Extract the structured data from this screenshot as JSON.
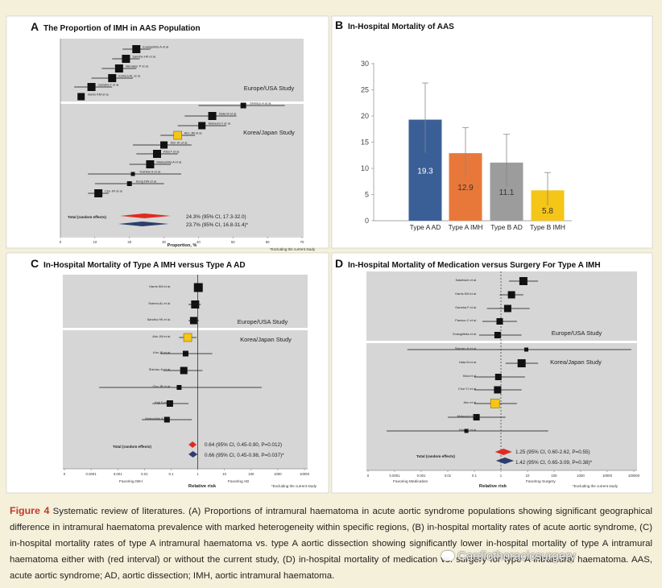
{
  "panel_a": {
    "letter": "A",
    "title": "The Proportion of IMH in AAS Population",
    "xlabel": "Proportion, %",
    "xticks": [
      "0",
      "10",
      "20",
      "30",
      "40",
      "50",
      "60",
      "70"
    ],
    "region_top": "Europe/USA Study",
    "region_bottom": "Korea/Japan Study",
    "total_label": "Total (random effects)",
    "summary_1": "24.3% (95% CI, 17.3-32.0)",
    "summary_2": "23.7% (95% CI, 16.8-31.4)*",
    "footnote": "*Excluding the current study",
    "chart_data": {
      "type": "forest",
      "x_range": [
        0,
        70
      ],
      "studies": [
        {
          "name": "Evangelista A et al.",
          "group": "Europe/USA",
          "estimate": 22,
          "ci": [
            18,
            26
          ]
        },
        {
          "name": "Sandhu HK et al.",
          "group": "Europe/USA",
          "estimate": 19,
          "ci": [
            15,
            23
          ]
        },
        {
          "name": "Nienaber P et al.",
          "group": "Europe/USA",
          "estimate": 17,
          "ci": [
            12,
            22
          ]
        },
        {
          "name": "Estrera AL et al.",
          "group": "Europe/USA",
          "estimate": 15,
          "ci": [
            9,
            21
          ]
        },
        {
          "name": "Ganaha F et al.",
          "group": "Europe/USA",
          "estimate": 9,
          "ci": [
            4,
            15
          ]
        },
        {
          "name": "Harris KM et al.",
          "group": "Europe/USA",
          "estimate": 6,
          "ci": [
            5,
            7
          ]
        },
        {
          "name": "Shimizu H et al.",
          "group": "Korea/Japan",
          "estimate": 53,
          "ci": [
            40,
            65
          ]
        },
        {
          "name": "Ihata M et al.",
          "group": "Korea/Japan",
          "estimate": 44,
          "ci": [
            36,
            51
          ]
        },
        {
          "name": "Motoumi Y et al.",
          "group": "Korea/Japan",
          "estimate": 41,
          "ci": [
            34,
            48
          ]
        },
        {
          "name": "Ahn JM et al.",
          "group": "Korea/Japan",
          "estimate": 34,
          "ci": [
            29,
            39
          ]
        },
        {
          "name": "Kim JK et al.",
          "group": "Korea/Japan",
          "estimate": 30,
          "ci": [
            21,
            38
          ]
        },
        {
          "name": "Kitai T et al.",
          "group": "Korea/Japan",
          "estimate": 28,
          "ci": [
            22,
            34
          ]
        },
        {
          "name": "Matsushita A et al.",
          "group": "Korea/Japan",
          "estimate": 26,
          "ci": [
            20,
            32
          ]
        },
        {
          "name": "Yoshida S et al.",
          "group": "Korea/Japan",
          "estimate": 21,
          "ci": [
            8,
            35
          ]
        },
        {
          "name": "Song DW et al.",
          "group": "Korea/Japan",
          "estimate": 20,
          "ci": [
            10,
            30
          ]
        },
        {
          "name": "Cho JR et al.",
          "group": "Korea/Japan",
          "estimate": 11,
          "ci": [
            8,
            14
          ]
        }
      ],
      "totals": [
        {
          "label": "24.3% (95% CI, 17.3-32.0)",
          "estimate": 24.3,
          "ci": [
            17.3,
            32.0
          ]
        },
        {
          "label": "23.7% (95% CI, 16.8-31.4)*",
          "estimate": 23.7,
          "ci": [
            16.8,
            31.4
          ]
        }
      ]
    }
  },
  "panel_b": {
    "letter": "B",
    "title": "In-Hospital Mortality of AAS",
    "chart_data": {
      "type": "bar",
      "categories": [
        "Type A AD",
        "Type A IMH",
        "Type B AD",
        "Type B IMH"
      ],
      "values": [
        19.3,
        12.9,
        11.1,
        5.8
      ],
      "errors_upper": [
        26.3,
        17.8,
        16.5,
        9.2
      ],
      "errors_lower": [
        13,
        8.4,
        6.5,
        2.9
      ],
      "value_labels": [
        "19.3",
        "12.9",
        "11.1",
        "5.8"
      ],
      "colors": [
        "#3a5f96",
        "#e8783a",
        "#9c9c9c",
        "#f5c518"
      ],
      "yticks": [
        "0",
        "5",
        "10",
        "15",
        "20",
        "25",
        "30"
      ],
      "ylim": [
        0,
        30
      ],
      "title": "In-Hospital Mortality of AAS"
    }
  },
  "panel_c": {
    "letter": "C",
    "title": "In-Hospital Mortality of Type A IMH versus Type A AD",
    "xlabel": "Relative risk",
    "favor_left": "Favoring IMH",
    "favor_right": "Favoring AD",
    "xticks": [
      "0",
      "0.0001",
      "0.001",
      "0.01",
      "0.1",
      "1",
      "10",
      "100",
      "1000",
      "10000"
    ],
    "region_top": "Europe/USA Study",
    "region_bottom": "Korea/Japan Study",
    "total_label": "Total (random effects)",
    "summary_1": "0.64 (95% CI, 0.45-0.90, P=0.012)",
    "summary_2": "0.66 (95% CI, 0.45-0.98, P=0.037)*",
    "footnote": "*Excluding the current study",
    "chart_data": {
      "type": "forest",
      "scale": "log",
      "x_range": [
        1e-05,
        10000
      ],
      "studies": [
        {
          "name": "Harris KM et al.",
          "group": "Europe/USA",
          "estimate": 1.05,
          "ci": [
            0.8,
            1.3
          ]
        },
        {
          "name": "Estrera AL et al.",
          "group": "Europe/USA",
          "estimate": 0.8,
          "ci": [
            0.45,
            1.3
          ]
        },
        {
          "name": "Sandhu HK et al.",
          "group": "Europe/USA",
          "estimate": 0.7,
          "ci": [
            0.45,
            1.1
          ]
        },
        {
          "name": "Ahn JM et al.",
          "group": "Korea/Japan",
          "estimate": 0.42,
          "ci": [
            0.2,
            0.9
          ]
        },
        {
          "name": "Kim JK et al.",
          "group": "Korea/Japan",
          "estimate": 0.35,
          "ci": [
            0.04,
            3.5
          ]
        },
        {
          "name": "Shimizu H et al.",
          "group": "Korea/Japan",
          "estimate": 0.3,
          "ci": [
            0.05,
            1.5
          ]
        },
        {
          "name": "Cho JR et al.",
          "group": "Korea/Japan",
          "estimate": 0.2,
          "ci": [
            0.0002,
            250
          ]
        },
        {
          "name": "Kaji S et al.",
          "group": "Korea/Japan",
          "estimate": 0.09,
          "ci": [
            0.02,
            0.45
          ]
        },
        {
          "name": "Matsushita A et al.",
          "group": "Korea/Japan",
          "estimate": 0.07,
          "ci": [
            0.008,
            0.6
          ]
        }
      ],
      "totals": [
        {
          "label": "0.64 (95% CI, 0.45-0.90, P=0.012)",
          "estimate": 0.64,
          "ci": [
            0.45,
            0.9
          ]
        },
        {
          "label": "0.66 (95% CI, 0.45-0.98, P=0.037)*",
          "estimate": 0.66,
          "ci": [
            0.45,
            0.98
          ]
        }
      ]
    }
  },
  "panel_d": {
    "letter": "D",
    "title": "In-Hospital Mortality of Medication versus Surgery For Type A IMH",
    "xlabel": "Relative risk",
    "favor_left": "Favoring Medication",
    "favor_right": "Favoring Surgery",
    "xticks": [
      "0",
      "0.0001",
      "0.001",
      "0.01",
      "0.1",
      "1",
      "10",
      "100",
      "1000",
      "10000",
      "100000"
    ],
    "region_top": "Europe/USA Study",
    "region_bottom": "Korea/Japan Study",
    "total_label": "Total (random effects)",
    "summary_1": "1.25 (95% CI, 0.60-2.62, P=0.55)",
    "summary_2": "1.42 (95% CI, 0.65-3.09, P=0.38)*",
    "footnote": "*Excluding the current study",
    "chart_data": {
      "type": "forest",
      "scale": "log",
      "x_range": [
        1e-05,
        100000
      ],
      "studies": [
        {
          "name": "Kaistrisch et al.",
          "group": "Europe/USA",
          "estimate": 7,
          "ci": [
            2,
            25
          ]
        },
        {
          "name": "Harris KM et al.",
          "group": "Europe/USA",
          "estimate": 2.5,
          "ci": [
            0.9,
            7
          ]
        },
        {
          "name": "Ganaha F et al.",
          "group": "Europe/USA",
          "estimate": 1.8,
          "ci": [
            0.3,
            12
          ]
        },
        {
          "name": "Pannuu C et al.",
          "group": "Europe/USA",
          "estimate": 0.9,
          "ci": [
            0.2,
            4
          ]
        },
        {
          "name": "Evangelista et al.",
          "group": "Europe/USA",
          "estimate": 0.75,
          "ci": [
            0.15,
            6
          ]
        },
        {
          "name": "Shimizu H et al.",
          "group": "Korea/Japan",
          "estimate": 9,
          "ci": [
            0.0003,
            80000
          ]
        },
        {
          "name": "Hata M et al.",
          "group": "Korea/Japan",
          "estimate": 6,
          "ci": [
            1.5,
            25
          ]
        },
        {
          "name": "Kitai et al.",
          "group": "Korea/Japan",
          "estimate": 0.8,
          "ci": [
            0.1,
            8
          ]
        },
        {
          "name": "Choi YJ et al.",
          "group": "Korea/Japan",
          "estimate": 0.75,
          "ci": [
            0.1,
            6
          ]
        },
        {
          "name": "Ahn et al.",
          "group": "Korea/Japan",
          "estimate": 0.6,
          "ci": [
            0.1,
            4
          ]
        },
        {
          "name": "Motoumi et al.",
          "group": "Korea/Japan",
          "estimate": 0.12,
          "ci": [
            0.01,
            1.5
          ]
        },
        {
          "name": "Kim JK et al.",
          "group": "Korea/Japan",
          "estimate": 0.05,
          "ci": [
            5e-05,
            60
          ]
        }
      ],
      "totals": [
        {
          "label": "1.25 (95% CI, 0.60-2.62, P=0.55)",
          "estimate": 1.25,
          "ci": [
            0.6,
            2.62
          ]
        },
        {
          "label": "1.42 (95% CI, 0.65-3.09, P=0.38)*",
          "estimate": 1.42,
          "ci": [
            0.65,
            3.09
          ]
        }
      ]
    }
  },
  "caption": {
    "label": "Figure 4",
    "text": "Systematic review of literatures. (A) Proportions of intramural haematoma in acute aortic syndrome populations showing significant geographical difference in intramural haematoma prevalence with marked heterogeneity within specific regions, (B) in-hospital mortality rates of acute aortic syndrome, (C) in-hospital mortality rates of type A intramural haematoma vs. type A aortic dissection showing significantly lower in-hospital mortality of type A intramural haematoma either with (red interval) or without the current study, (D) in-hospital mortality of medication vs. surgery for type A intramural haematoma. AAS, acute aortic syndrome; AD, aortic dissection; IMH, aortic intramural haematoma."
  },
  "watermark": "Cardiothoracicsurgery",
  "colors": {
    "bg": "#f5f0da",
    "panel_a_fill": "#d4d4d4",
    "highlight": "#f5c518",
    "red": "#e02b20",
    "navy": "#2c3e6b",
    "caption_label": "#c0392b"
  }
}
